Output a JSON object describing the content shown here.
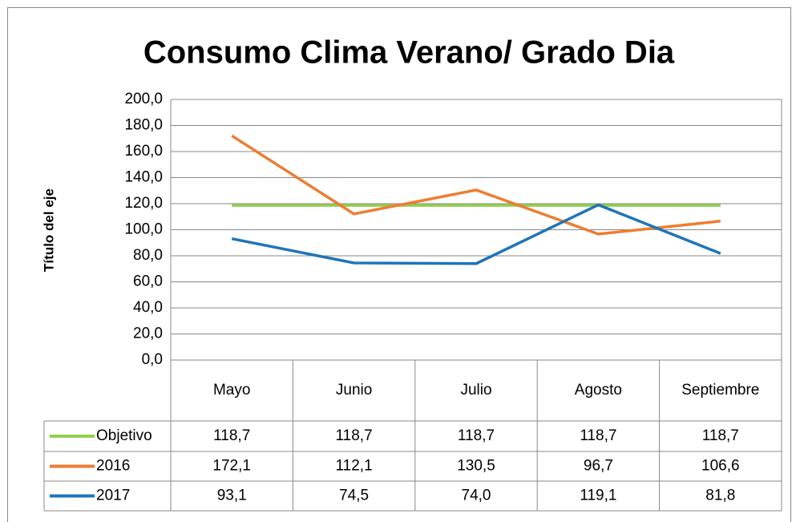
{
  "chart_data": {
    "type": "line",
    "title": "Consumo Clima Verano/ Grado Dia",
    "y_label": "Título del eje",
    "categories": [
      "Mayo",
      "Junio",
      "Julio",
      "Agosto",
      "Septiembre"
    ],
    "series": [
      {
        "name": "Objetivo",
        "color": "#92d050",
        "values": [
          118.7,
          118.7,
          118.7,
          118.7,
          118.7
        ],
        "value_labels": [
          "118,7",
          "118,7",
          "118,7",
          "118,7",
          "118,7"
        ]
      },
      {
        "name": "2016",
        "color": "#ed7d31",
        "values": [
          172.1,
          112.1,
          130.5,
          96.7,
          106.6
        ],
        "value_labels": [
          "172,1",
          "112,1",
          "130,5",
          "96,7",
          "106,6"
        ]
      },
      {
        "name": "2017",
        "color": "#1f74b8",
        "values": [
          93.1,
          74.5,
          74.0,
          119.1,
          81.8
        ],
        "value_labels": [
          "93,1",
          "74,5",
          "74,0",
          "119,1",
          "81,8"
        ]
      }
    ],
    "ylim": [
      0,
      200
    ],
    "yticks": [
      {
        "value": 0,
        "label": "0,0"
      },
      {
        "value": 20,
        "label": "20,0"
      },
      {
        "value": 40,
        "label": "40,0"
      },
      {
        "value": 60,
        "label": "60,0"
      },
      {
        "value": 80,
        "label": "80,0"
      },
      {
        "value": 100,
        "label": "100,0"
      },
      {
        "value": 120,
        "label": "120,0"
      },
      {
        "value": 140,
        "label": "140,0"
      },
      {
        "value": 160,
        "label": "160,0"
      },
      {
        "value": 180,
        "label": "180,0"
      },
      {
        "value": 200,
        "label": "200,0"
      }
    ],
    "grid": true
  }
}
